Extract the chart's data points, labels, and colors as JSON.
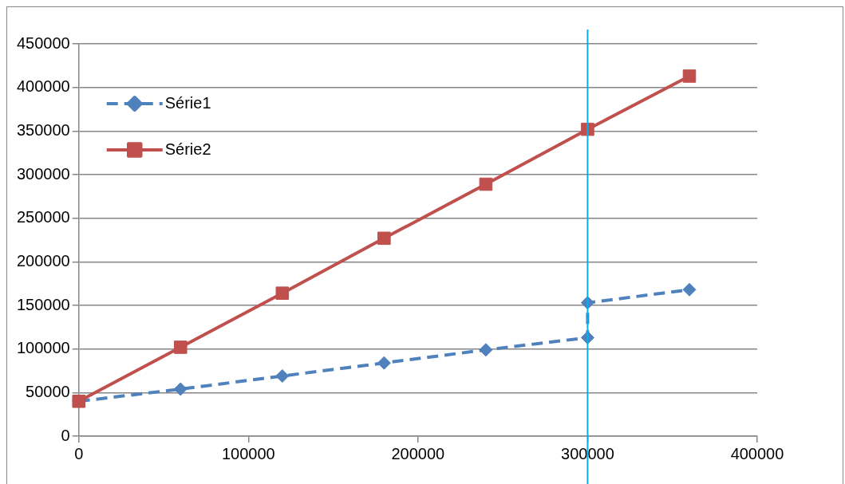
{
  "chart_data": {
    "type": "line",
    "xlim": [
      0,
      400000
    ],
    "xticks": [
      0,
      100000,
      200000,
      300000,
      400000
    ],
    "ylim": [
      0,
      450000
    ],
    "yticks": [
      0,
      50000,
      100000,
      150000,
      200000,
      250000,
      300000,
      350000,
      400000,
      450000
    ],
    "series": [
      {
        "name": "Série1",
        "color": "#4f81bd",
        "marker": "diamond",
        "line_style": "dashed",
        "x": [
          0,
          60000,
          120000,
          180000,
          240000,
          300000,
          300000,
          360000
        ],
        "values": [
          40000,
          54000,
          69000,
          84000,
          99000,
          113000,
          153000,
          168000
        ]
      },
      {
        "name": "Série2",
        "color": "#c0504d",
        "marker": "square",
        "line_style": "solid",
        "x": [
          0,
          60000,
          120000,
          180000,
          240000,
          300000,
          360000
        ],
        "values": [
          40000,
          102000,
          164000,
          227000,
          289000,
          352000,
          413000
        ]
      }
    ],
    "ref_lines": [
      {
        "axis": "x",
        "value": 300000,
        "color": "#00b0f0"
      }
    ],
    "grid": "y",
    "legend": "top left"
  }
}
